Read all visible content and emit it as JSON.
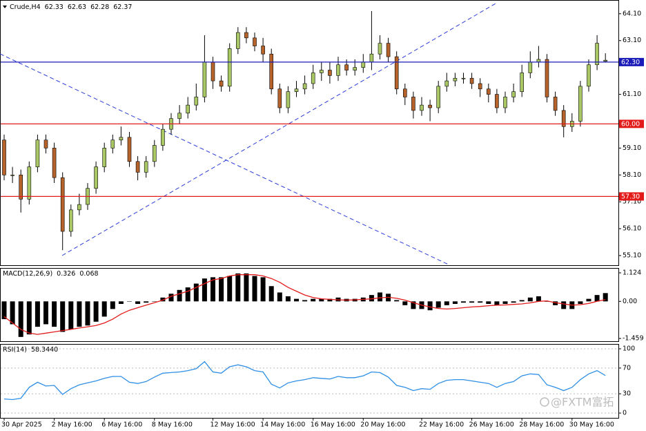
{
  "chart_data": [
    {
      "type": "candlestick",
      "title": "Crude,H4",
      "categories": [
        "30 Apr 2025",
        null,
        null,
        null,
        null,
        null,
        "2 May 16:00",
        null,
        null,
        null,
        null,
        null,
        "6 May 16:00",
        null,
        null,
        null,
        null,
        null,
        "8 May 16:00",
        null,
        null,
        null,
        null,
        null,
        null,
        "12 May 16:00",
        null,
        null,
        null,
        null,
        null,
        "14 May 16:00",
        null,
        null,
        null,
        null,
        null,
        "16 May 16:00",
        null,
        null,
        null,
        null,
        null,
        "20 May 16:00",
        null,
        null,
        null,
        null,
        null,
        null,
        "22 May 16:00",
        null,
        null,
        null,
        null,
        null,
        "26 May 16:00",
        null,
        null,
        null,
        null,
        null,
        "28 May 16:00",
        null,
        null,
        null,
        null,
        null,
        "30 May 16:00",
        null,
        null,
        null,
        null
      ],
      "open": [
        59.4,
        58.1,
        58.1,
        57.2,
        58.4,
        59.4,
        59.1,
        58.0,
        56.0,
        56.8,
        57.0,
        57.6,
        58.4,
        59.1,
        59.4,
        59.5,
        58.6,
        58.2,
        58.6,
        59.2,
        59.8,
        60.2,
        60.4,
        60.7,
        61.0,
        62.3,
        61.6,
        61.4,
        62.8,
        63.4,
        63.2,
        62.9,
        62.6,
        61.3,
        60.6,
        61.2,
        61.3,
        61.5,
        61.9,
        62.0,
        61.8,
        62.2,
        62.0,
        62.1,
        62.3,
        62.6,
        63.0,
        62.5,
        61.3,
        61.0,
        60.5,
        60.7,
        60.6,
        61.4,
        61.6,
        61.7,
        61.7,
        61.5,
        61.3,
        61.1,
        60.6,
        61.0,
        61.2,
        61.9,
        62.3,
        62.4,
        61.0,
        60.5,
        59.9,
        60.1,
        61.4,
        62.2,
        62.33
      ],
      "high": [
        59.6,
        58.4,
        58.3,
        58.6,
        59.6,
        59.6,
        59.3,
        58.2,
        57.0,
        57.4,
        57.8,
        58.6,
        59.3,
        59.6,
        59.9,
        59.7,
        58.8,
        58.8,
        59.4,
        60.0,
        60.4,
        60.7,
        61.0,
        61.5,
        63.3,
        62.5,
        61.8,
        63.0,
        63.6,
        63.6,
        63.4,
        63.2,
        62.8,
        61.5,
        61.4,
        61.6,
        61.8,
        62.2,
        62.3,
        62.3,
        62.5,
        62.4,
        62.4,
        62.6,
        64.2,
        63.3,
        63.2,
        62.7,
        61.5,
        61.2,
        61.0,
        60.9,
        61.6,
        61.9,
        61.9,
        61.9,
        61.9,
        61.7,
        61.5,
        61.3,
        61.2,
        61.5,
        62.2,
        62.7,
        62.9,
        62.6,
        61.2,
        60.7,
        60.4,
        61.6,
        62.4,
        63.3,
        62.63
      ],
      "low": [
        57.9,
        57.8,
        56.7,
        57.0,
        58.2,
        58.9,
        57.8,
        55.3,
        55.8,
        56.6,
        56.8,
        57.4,
        58.2,
        58.9,
        59.2,
        58.4,
        57.9,
        58.0,
        58.4,
        59.0,
        59.6,
        60.0,
        60.2,
        60.5,
        60.8,
        61.3,
        61.2,
        61.2,
        62.6,
        63.0,
        62.7,
        62.3,
        61.1,
        60.4,
        60.4,
        61.0,
        61.1,
        61.3,
        61.6,
        61.5,
        61.6,
        61.8,
        61.8,
        61.9,
        62.0,
        62.4,
        62.3,
        61.1,
        60.7,
        60.2,
        60.3,
        60.1,
        60.4,
        61.2,
        61.4,
        61.5,
        61.3,
        61.0,
        60.8,
        60.4,
        60.4,
        60.8,
        61.0,
        61.7,
        62.1,
        60.8,
        60.3,
        59.5,
        59.7,
        59.9,
        61.2,
        62.0,
        62.28
      ],
      "close": [
        58.1,
        58.1,
        57.2,
        58.4,
        59.4,
        59.1,
        58.0,
        56.0,
        56.8,
        57.0,
        57.6,
        58.4,
        59.1,
        59.4,
        59.5,
        58.6,
        58.2,
        58.6,
        59.2,
        59.8,
        60.2,
        60.4,
        60.7,
        61.0,
        62.3,
        61.6,
        61.4,
        62.8,
        63.4,
        63.2,
        62.9,
        62.6,
        61.3,
        60.6,
        61.2,
        61.3,
        61.5,
        61.9,
        62.0,
        61.8,
        62.2,
        62.0,
        62.1,
        62.3,
        62.6,
        63.0,
        62.5,
        61.3,
        61.0,
        60.5,
        60.7,
        60.6,
        61.4,
        61.6,
        61.7,
        61.7,
        61.5,
        61.3,
        61.1,
        60.6,
        61.0,
        61.2,
        61.9,
        62.3,
        62.4,
        61.0,
        60.5,
        59.9,
        60.1,
        61.4,
        62.2,
        63.0,
        62.37
      ],
      "up_color": "#a9c865",
      "down_color": "#b5632b",
      "ylim": [
        54.74,
        64.61
      ],
      "yticks": [
        {
          "value": 64.1,
          "label": "64.10"
        },
        {
          "value": 63.1,
          "label": "63.10"
        },
        {
          "value": 61.1,
          "label": "61.10"
        },
        {
          "value": 59.1,
          "label": "59.10"
        },
        {
          "value": 58.1,
          "label": "58.10"
        },
        {
          "value": 57.1,
          "label": "57.10"
        },
        {
          "value": 56.1,
          "label": "56.10"
        },
        {
          "value": 55.1,
          "label": "55.10"
        }
      ],
      "levels": [
        {
          "value": 62.3,
          "label": "62.30",
          "color": "#1a1ab8"
        },
        {
          "value": 60,
          "label": "60.00",
          "color": "#e31a1a"
        },
        {
          "value": 57.3,
          "label": "57.30",
          "color": "#e31a1a"
        }
      ]
    },
    {
      "type": "macd",
      "title": "MACD(12,26,9)",
      "histogram": [
        -0.7,
        -0.9,
        -1.4,
        -1.3,
        -1.0,
        -0.9,
        -1.0,
        -1.2,
        -1.1,
        -1.0,
        -0.95,
        -0.8,
        -0.6,
        -0.3,
        -0.1,
        0.0,
        -0.1,
        -0.05,
        0.0,
        0.15,
        0.3,
        0.45,
        0.55,
        0.7,
        0.9,
        0.95,
        0.95,
        1.0,
        1.1,
        1.1,
        1.0,
        0.95,
        0.6,
        0.35,
        0.2,
        0.1,
        0.05,
        0.1,
        0.1,
        0.1,
        0.15,
        0.1,
        0.1,
        0.15,
        0.25,
        0.35,
        0.3,
        0.05,
        -0.15,
        -0.3,
        -0.3,
        -0.35,
        -0.25,
        -0.15,
        -0.1,
        -0.05,
        -0.05,
        -0.05,
        -0.1,
        -0.15,
        -0.1,
        -0.05,
        0.05,
        0.15,
        0.2,
        0.0,
        -0.15,
        -0.3,
        -0.3,
        -0.1,
        0.1,
        0.25,
        0.326
      ],
      "signal": [
        -0.6,
        -0.85,
        -1.1,
        -1.25,
        -1.3,
        -1.25,
        -1.2,
        -1.15,
        -1.1,
        -1.05,
        -1.0,
        -0.95,
        -0.85,
        -0.7,
        -0.5,
        -0.35,
        -0.25,
        -0.15,
        -0.05,
        0.05,
        0.2,
        0.3,
        0.4,
        0.55,
        0.7,
        0.85,
        0.9,
        1.0,
        1.05,
        1.05,
        1.05,
        1.0,
        0.9,
        0.75,
        0.55,
        0.4,
        0.25,
        0.15,
        0.1,
        0.08,
        0.06,
        0.05,
        0.06,
        0.08,
        0.1,
        0.14,
        0.16,
        0.12,
        0.05,
        -0.05,
        -0.15,
        -0.22,
        -0.28,
        -0.3,
        -0.28,
        -0.25,
        -0.22,
        -0.2,
        -0.17,
        -0.15,
        -0.14,
        -0.12,
        -0.1,
        -0.06,
        0.0,
        0.02,
        -0.05,
        -0.1,
        -0.15,
        -0.13,
        -0.08,
        0.0,
        0.068
      ],
      "histogram_color": "#000000",
      "signal_color": "#e31a1a",
      "ylim": [
        -1.568,
        1.314
      ],
      "yticks": [
        1.124,
        {
          "value": 0,
          "label": "0.00"
        },
        -1.459
      ]
    },
    {
      "type": "rsi",
      "title": "RSI(14)",
      "value_label": "58.3440",
      "values": [
        22,
        21,
        23,
        40,
        48,
        42,
        43,
        29,
        38,
        44,
        47,
        50,
        54,
        57,
        57,
        48,
        46,
        49,
        56,
        62,
        63,
        64,
        66,
        69,
        80,
        64,
        62,
        72,
        75,
        72,
        66,
        64,
        45,
        39,
        47,
        50,
        52,
        55,
        54,
        53,
        57,
        55,
        55,
        58,
        64,
        63,
        56,
        43,
        40,
        35,
        38,
        37,
        46,
        51,
        52,
        52,
        50,
        48,
        46,
        40,
        46,
        49,
        58,
        61,
        60,
        44,
        40,
        35,
        40,
        52,
        61,
        66,
        58.344
      ],
      "color": "#2e8fe6",
      "ylim": [
        -7.5,
        107.5
      ],
      "yticks": [
        100,
        70,
        30,
        0
      ],
      "grid": true
    }
  ],
  "watermark": "@FXTM富拓"
}
